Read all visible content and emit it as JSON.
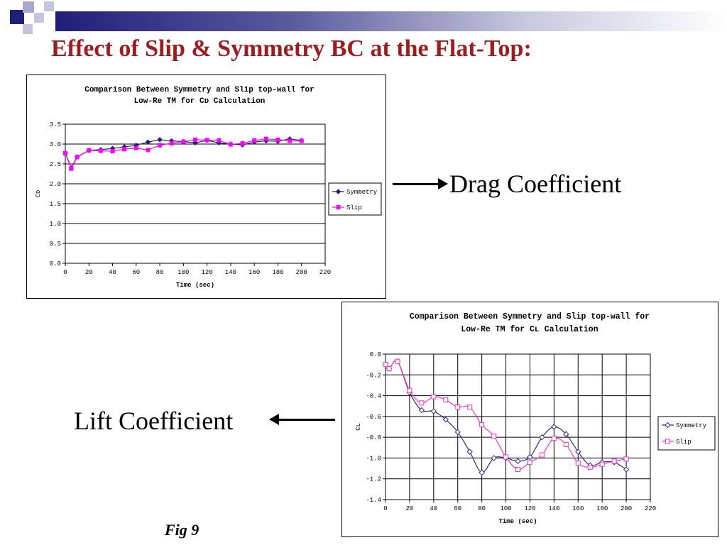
{
  "slide": {
    "title": "Effect of Slip & Symmetry BC at the Flat-Top:",
    "drag_label": "Drag Coefficient",
    "lift_label": "Lift Coefficient",
    "fig_label": "Fig 9",
    "accent_color": "#a01c1c",
    "deco_color": "#1f1f7a"
  },
  "chart_data": [
    {
      "type": "line",
      "title": "Comparison Between Symmetry and Slip top-wall for",
      "subtitle": "Low-Re TM for Cᴅ Calculation",
      "xlabel": "Time (sec)",
      "ylabel": "Cᴅ",
      "xlim": [
        0,
        220
      ],
      "ylim": [
        0,
        3.5
      ],
      "xticks": [
        0,
        20,
        40,
        60,
        80,
        100,
        120,
        140,
        160,
        180,
        200,
        220
      ],
      "yticks": [
        0,
        0.5,
        1,
        1.5,
        2,
        2.5,
        3,
        3.5
      ],
      "ytick_labels": [
        "0.0",
        "0.5",
        "1.0",
        "1.5",
        "2.0",
        "2.5",
        "3.0",
        "3.5"
      ],
      "grid": "horizontal",
      "legend": "right",
      "smooth": false,
      "series": [
        {
          "name": "Symmetry",
          "color": "#1f1f7a",
          "marker": "diamond-filled",
          "x": [
            0,
            5,
            10,
            20,
            30,
            40,
            50,
            60,
            70,
            80,
            90,
            100,
            110,
            120,
            130,
            140,
            150,
            160,
            170,
            180,
            190,
            200
          ],
          "values": [
            2.78,
            2.4,
            2.68,
            2.84,
            2.86,
            2.89,
            2.93,
            2.97,
            3.05,
            3.11,
            3.08,
            3.06,
            3.03,
            3.09,
            3.03,
            3.0,
            2.98,
            3.05,
            3.08,
            3.07,
            3.13,
            3.09
          ]
        },
        {
          "name": "Slip",
          "color": "#ff00ff",
          "marker": "square-filled",
          "x": [
            0,
            5,
            10,
            20,
            30,
            40,
            50,
            60,
            70,
            80,
            90,
            100,
            110,
            120,
            130,
            140,
            150,
            160,
            170,
            180,
            190,
            200
          ],
          "values": [
            2.77,
            2.38,
            2.67,
            2.84,
            2.83,
            2.82,
            2.87,
            2.9,
            2.85,
            2.97,
            3.02,
            3.06,
            3.11,
            3.1,
            3.09,
            2.99,
            3.02,
            3.09,
            3.13,
            3.11,
            3.08,
            3.08
          ]
        }
      ]
    },
    {
      "type": "line",
      "title": "Comparison Between Symmetry and Slip top-wall for",
      "subtitle": "Low-Re TM for Cʟ Calculation",
      "xlabel": "Time (sec)",
      "ylabel": "Cʟ",
      "xlim": [
        0,
        220
      ],
      "ylim": [
        -1.4,
        0
      ],
      "xticks": [
        0,
        20,
        40,
        60,
        80,
        100,
        120,
        140,
        160,
        180,
        200,
        220
      ],
      "yticks": [
        0,
        -0.2,
        -0.4,
        -0.6,
        -0.8,
        -1,
        -1.2,
        -1.4
      ],
      "ytick_labels": [
        "0.0",
        "-0.2",
        "-0.4",
        "-0.6",
        "-0.8",
        "-1.0",
        "-1.2",
        "-1.4"
      ],
      "grid": "both",
      "legend": "right",
      "smooth": true,
      "series": [
        {
          "name": "Symmetry",
          "color": "#2a2a8c",
          "marker": "diamond-open",
          "x": [
            0,
            3,
            10,
            20,
            30,
            40,
            50,
            60,
            70,
            80,
            90,
            100,
            110,
            120,
            130,
            140,
            150,
            160,
            170,
            180,
            190,
            200
          ],
          "values": [
            -0.1,
            -0.14,
            -0.07,
            -0.37,
            -0.54,
            -0.55,
            -0.63,
            -0.75,
            -0.94,
            -1.14,
            -1.0,
            -1.0,
            -1.03,
            -0.99,
            -0.8,
            -0.7,
            -0.77,
            -0.94,
            -1.07,
            -1.04,
            -1.04,
            -1.11
          ]
        },
        {
          "name": "Slip",
          "color": "#ff33cc",
          "marker": "square-open",
          "x": [
            0,
            3,
            10,
            20,
            30,
            40,
            50,
            60,
            70,
            80,
            90,
            100,
            110,
            120,
            130,
            140,
            150,
            160,
            170,
            180,
            190,
            200
          ],
          "values": [
            -0.1,
            -0.14,
            -0.07,
            -0.35,
            -0.47,
            -0.41,
            -0.44,
            -0.51,
            -0.51,
            -0.68,
            -0.79,
            -0.99,
            -1.11,
            -1.04,
            -0.97,
            -0.81,
            -0.87,
            -1.05,
            -1.09,
            -1.06,
            -1.03,
            -1.01
          ]
        }
      ]
    }
  ]
}
